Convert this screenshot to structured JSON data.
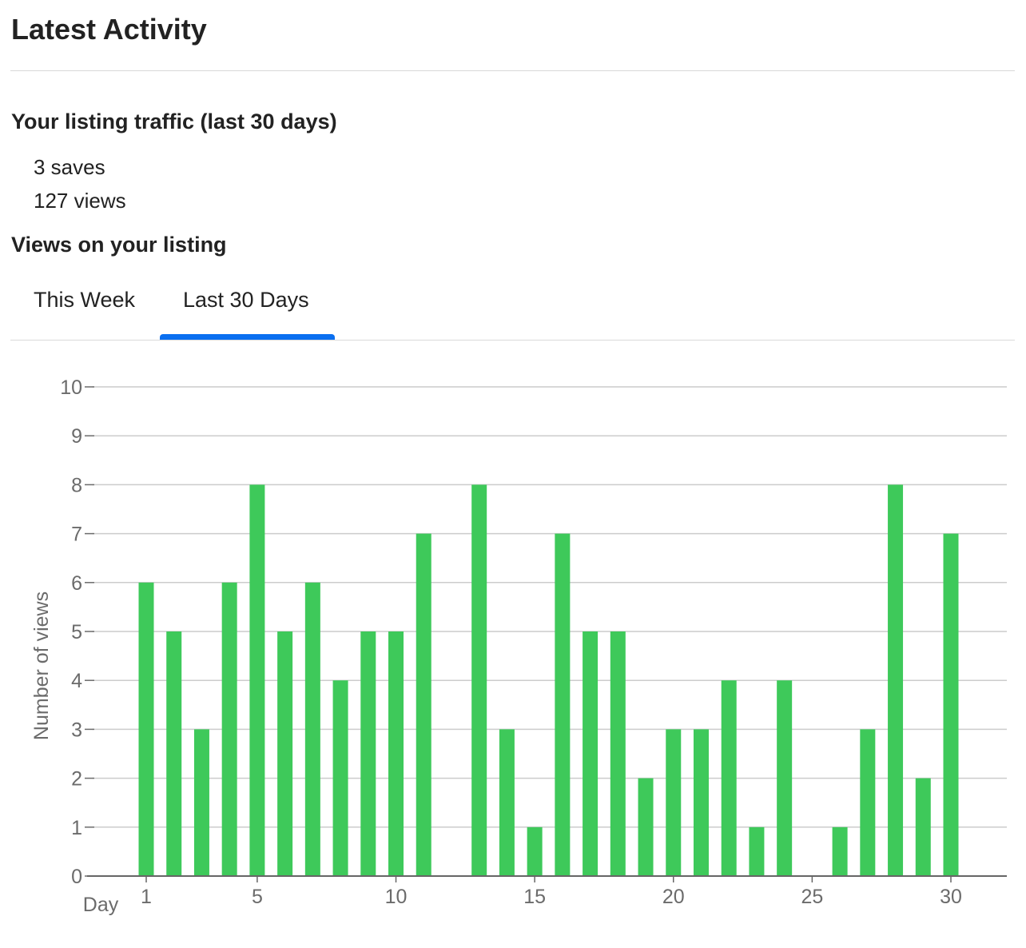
{
  "header": {
    "title": "Latest Activity"
  },
  "traffic": {
    "heading": "Your listing traffic (last 30 days)",
    "saves": "3 saves",
    "views": "127 views"
  },
  "views_section": {
    "heading": "Views on your listing",
    "tabs": [
      {
        "label": "This Week",
        "selected": false
      },
      {
        "label": "Last 30 Days",
        "selected": true
      }
    ]
  },
  "colors": {
    "bar": "#3ec95a",
    "accent": "#0a6ff0",
    "axis_text": "#6b6b6b",
    "grid": "#cccccc"
  },
  "chart_data": {
    "type": "bar",
    "xlabel": "Day",
    "ylabel": "Number of views",
    "ylim": [
      0,
      10
    ],
    "xlim": [
      0,
      31
    ],
    "yticks": [
      0,
      1,
      2,
      3,
      4,
      5,
      6,
      7,
      8,
      9,
      10
    ],
    "xticks": [
      1,
      5,
      10,
      15,
      20,
      25,
      30
    ],
    "grid": true,
    "legend": "none",
    "x": [
      1,
      2,
      3,
      4,
      5,
      6,
      7,
      8,
      9,
      10,
      11,
      12,
      13,
      14,
      15,
      16,
      17,
      18,
      19,
      20,
      21,
      22,
      23,
      24,
      25,
      26,
      27,
      28,
      29,
      30
    ],
    "values": [
      6,
      5,
      3,
      6,
      8,
      5,
      6,
      4,
      5,
      5,
      7,
      0,
      8,
      3,
      1,
      7,
      5,
      5,
      2,
      3,
      3,
      4,
      1,
      4,
      0,
      1,
      3,
      8,
      2,
      7
    ]
  }
}
